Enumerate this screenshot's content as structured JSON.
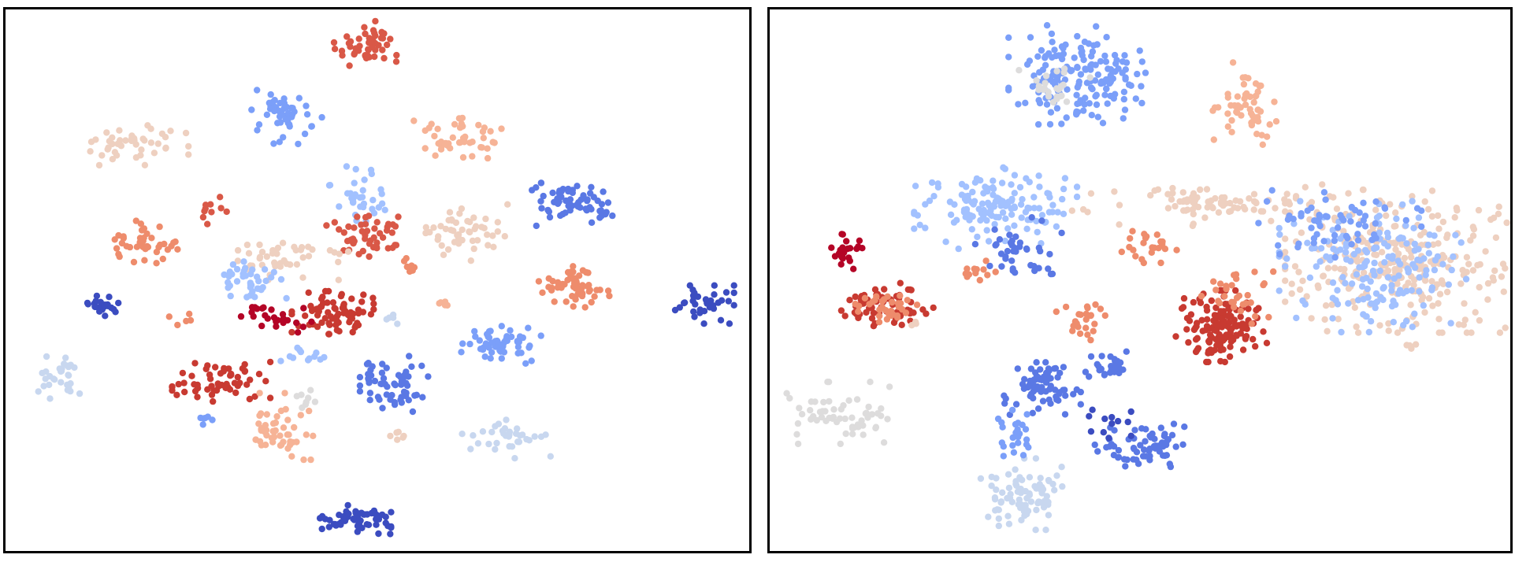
{
  "colors": {
    "c0": "#3b4cc0",
    "c1": "#5a78e4",
    "c2": "#7b9ff9",
    "c3": "#a2c1ff",
    "c4": "#c8d7ef",
    "c5": "#dddcdc",
    "c6": "#eed0c0",
    "c7": "#f6b396",
    "c8": "#ee8c6c",
    "c9": "#d95847",
    "c10": "#c83a31",
    "c11": "#b40426"
  },
  "chart_data": [
    {
      "type": "scatter",
      "title": "",
      "xlabel": "",
      "ylabel": "",
      "axes_visible": false,
      "xlim": [
        0,
        100
      ],
      "ylim": [
        0,
        100
      ],
      "colormap": "coolwarm",
      "clusters": [
        {
          "x": 48.5,
          "y": 93.0,
          "sx": 2.0,
          "sy": 2.2,
          "n": 50,
          "color": "c9"
        },
        {
          "x": 37.5,
          "y": 80.0,
          "sx": 2.3,
          "sy": 2.6,
          "n": 50,
          "color": "c2"
        },
        {
          "x": 18.0,
          "y": 75.0,
          "sx": 3.0,
          "sy": 1.8,
          "n": 45,
          "color": "c6"
        },
        {
          "x": 61.5,
          "y": 76.0,
          "sx": 3.0,
          "sy": 1.8,
          "n": 45,
          "color": "c7"
        },
        {
          "x": 76.5,
          "y": 64.0,
          "sx": 2.6,
          "sy": 1.8,
          "n": 65,
          "color": "c1"
        },
        {
          "x": 47.5,
          "y": 65.5,
          "sx": 1.8,
          "sy": 2.5,
          "n": 35,
          "color": "c3"
        },
        {
          "x": 48.0,
          "y": 58.0,
          "sx": 2.2,
          "sy": 1.8,
          "n": 50,
          "color": "c9"
        },
        {
          "x": 18.5,
          "y": 57.0,
          "sx": 2.6,
          "sy": 1.8,
          "n": 40,
          "color": "c8"
        },
        {
          "x": 62.0,
          "y": 58.5,
          "sx": 2.5,
          "sy": 2.5,
          "n": 50,
          "color": "c6"
        },
        {
          "x": 38.0,
          "y": 54.0,
          "sx": 4.0,
          "sy": 1.8,
          "n": 45,
          "color": "c6"
        },
        {
          "x": 32.5,
          "y": 50.0,
          "sx": 2.4,
          "sy": 1.8,
          "n": 40,
          "color": "c3"
        },
        {
          "x": 76.5,
          "y": 49.0,
          "sx": 2.2,
          "sy": 2.0,
          "n": 55,
          "color": "c8"
        },
        {
          "x": 12.5,
          "y": 45.5,
          "sx": 1.5,
          "sy": 1.1,
          "n": 25,
          "color": "c0"
        },
        {
          "x": 94.0,
          "y": 45.5,
          "sx": 1.8,
          "sy": 1.6,
          "n": 40,
          "color": "c0"
        },
        {
          "x": 44.0,
          "y": 44.0,
          "sx": 2.5,
          "sy": 1.8,
          "n": 75,
          "color": "c10"
        },
        {
          "x": 36.0,
          "y": 43.0,
          "sx": 2.5,
          "sy": 1.2,
          "n": 25,
          "color": "c11"
        },
        {
          "x": 66.5,
          "y": 38.0,
          "sx": 2.5,
          "sy": 1.6,
          "n": 55,
          "color": "c2"
        },
        {
          "x": 29.0,
          "y": 31.5,
          "sx": 3.0,
          "sy": 2.0,
          "n": 60,
          "color": "c10"
        },
        {
          "x": 7.5,
          "y": 32.0,
          "sx": 1.4,
          "sy": 2.2,
          "n": 30,
          "color": "c4"
        },
        {
          "x": 52.5,
          "y": 31.0,
          "sx": 2.2,
          "sy": 2.4,
          "n": 60,
          "color": "c1"
        },
        {
          "x": 37.0,
          "y": 23.0,
          "sx": 2.0,
          "sy": 2.8,
          "n": 50,
          "color": "c7"
        },
        {
          "x": 68.0,
          "y": 21.0,
          "sx": 3.0,
          "sy": 1.8,
          "n": 35,
          "color": "c4"
        },
        {
          "x": 47.0,
          "y": 6.0,
          "sx": 2.2,
          "sy": 1.3,
          "n": 60,
          "color": "c0"
        },
        {
          "x": 26.5,
          "y": 24.0,
          "sx": 0.8,
          "sy": 0.6,
          "n": 6,
          "color": "c2"
        },
        {
          "x": 53.0,
          "y": 21.5,
          "sx": 0.7,
          "sy": 0.6,
          "n": 6,
          "color": "c6"
        },
        {
          "x": 27.5,
          "y": 63.0,
          "sx": 1.3,
          "sy": 1.2,
          "n": 10,
          "color": "c9"
        },
        {
          "x": 54.5,
          "y": 52.5,
          "sx": 0.8,
          "sy": 0.7,
          "n": 7,
          "color": "c8"
        },
        {
          "x": 59.0,
          "y": 45.5,
          "sx": 0.6,
          "sy": 0.6,
          "n": 5,
          "color": "c7"
        },
        {
          "x": 52.0,
          "y": 43.0,
          "sx": 0.6,
          "sy": 0.6,
          "n": 5,
          "color": "c4"
        },
        {
          "x": 23.5,
          "y": 42.5,
          "sx": 0.8,
          "sy": 0.6,
          "n": 5,
          "color": "c8"
        },
        {
          "x": 41.0,
          "y": 36.0,
          "sx": 2.0,
          "sy": 1.0,
          "n": 12,
          "color": "c3"
        },
        {
          "x": 40.5,
          "y": 28.0,
          "sx": 1.0,
          "sy": 0.8,
          "n": 8,
          "color": "c5"
        }
      ]
    },
    {
      "type": "scatter",
      "title": "",
      "xlabel": "",
      "ylabel": "",
      "axes_visible": false,
      "xlim": [
        0,
        100
      ],
      "ylim": [
        0,
        100
      ],
      "colormap": "coolwarm",
      "clusters": [
        {
          "x": 41.5,
          "y": 88.0,
          "sx": 4.2,
          "sy": 4.2,
          "n": 170,
          "color": "c2"
        },
        {
          "x": 38.5,
          "y": 86.0,
          "sx": 2.2,
          "sy": 2.2,
          "n": 25,
          "color": "c5"
        },
        {
          "x": 64.0,
          "y": 82.5,
          "sx": 2.0,
          "sy": 3.5,
          "n": 55,
          "color": "c7"
        },
        {
          "x": 30.5,
          "y": 63.5,
          "sx": 5.0,
          "sy": 3.5,
          "n": 140,
          "color": "c3"
        },
        {
          "x": 33.5,
          "y": 55.0,
          "sx": 3.0,
          "sy": 3.0,
          "n": 40,
          "color": "c1"
        },
        {
          "x": 28.0,
          "y": 52.0,
          "sx": 1.5,
          "sy": 1.5,
          "n": 12,
          "color": "c8"
        },
        {
          "x": 51.0,
          "y": 56.5,
          "sx": 1.8,
          "sy": 1.5,
          "n": 25,
          "color": "c8"
        },
        {
          "x": 60.5,
          "y": 64.0,
          "sx": 9.0,
          "sy": 1.8,
          "n": 90,
          "color": "c6"
        },
        {
          "x": 85.0,
          "y": 53.5,
          "sx": 7.0,
          "sy": 6.0,
          "n": 300,
          "color": "c6"
        },
        {
          "x": 82.0,
          "y": 52.5,
          "sx": 6.0,
          "sy": 5.5,
          "n": 170,
          "color": "c3"
        },
        {
          "x": 77.0,
          "y": 60.0,
          "sx": 5.0,
          "sy": 3.0,
          "n": 60,
          "color": "c2"
        },
        {
          "x": 61.0,
          "y": 41.5,
          "sx": 2.8,
          "sy": 3.0,
          "n": 140,
          "color": "c10"
        },
        {
          "x": 63.5,
          "y": 47.0,
          "sx": 2.5,
          "sy": 2.5,
          "n": 30,
          "color": "c8"
        },
        {
          "x": 10.5,
          "y": 55.0,
          "sx": 1.0,
          "sy": 1.6,
          "n": 25,
          "color": "c11"
        },
        {
          "x": 15.5,
          "y": 45.5,
          "sx": 3.0,
          "sy": 1.8,
          "n": 70,
          "color": "c10"
        },
        {
          "x": 15.5,
          "y": 45.0,
          "sx": 2.0,
          "sy": 1.3,
          "n": 35,
          "color": "c8"
        },
        {
          "x": 42.0,
          "y": 42.5,
          "sx": 1.5,
          "sy": 1.8,
          "n": 25,
          "color": "c8"
        },
        {
          "x": 36.5,
          "y": 30.0,
          "sx": 2.5,
          "sy": 2.2,
          "n": 70,
          "color": "c1"
        },
        {
          "x": 46.0,
          "y": 34.0,
          "sx": 1.8,
          "sy": 1.3,
          "n": 25,
          "color": "c1"
        },
        {
          "x": 50.5,
          "y": 19.5,
          "sx": 3.0,
          "sy": 1.8,
          "n": 65,
          "color": "c1"
        },
        {
          "x": 45.5,
          "y": 23.5,
          "sx": 1.5,
          "sy": 1.2,
          "n": 12,
          "color": "c0"
        },
        {
          "x": 10.0,
          "y": 25.5,
          "sx": 3.5,
          "sy": 2.6,
          "n": 60,
          "color": "c5"
        },
        {
          "x": 34.0,
          "y": 10.5,
          "sx": 2.5,
          "sy": 3.0,
          "n": 80,
          "color": "c4"
        },
        {
          "x": 33.5,
          "y": 21.0,
          "sx": 1.2,
          "sy": 3.0,
          "n": 25,
          "color": "c2"
        },
        {
          "x": 97.5,
          "y": 51.0,
          "sx": 0.6,
          "sy": 0.8,
          "n": 4,
          "color": "c6"
        },
        {
          "x": 86.5,
          "y": 38.0,
          "sx": 0.6,
          "sy": 0.6,
          "n": 4,
          "color": "c6"
        },
        {
          "x": 20.0,
          "y": 42.0,
          "sx": 0.6,
          "sy": 0.6,
          "n": 3,
          "color": "c6"
        }
      ]
    }
  ]
}
